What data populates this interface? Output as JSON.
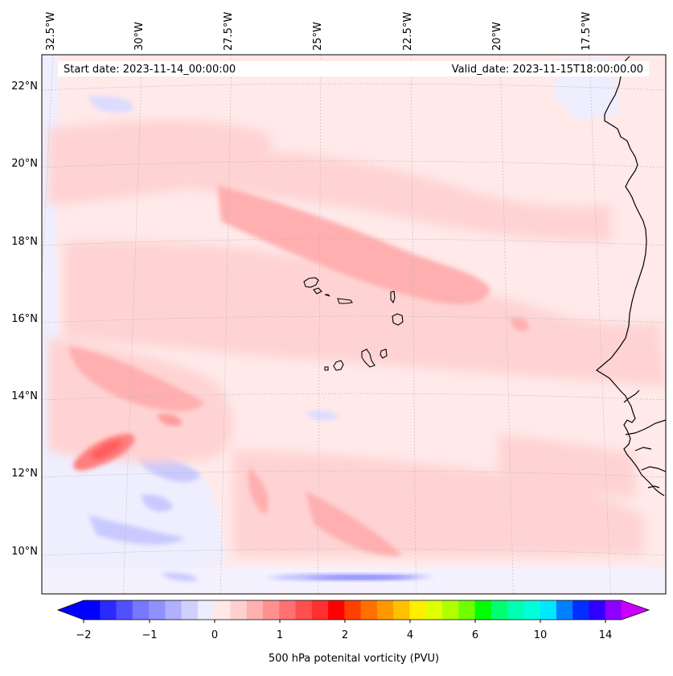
{
  "header": {
    "start_date": "Start date: 2023-11-14_00:00:00",
    "valid_date": "Valid_date: 2023-11-15T18:00:00.00"
  },
  "map": {
    "projection": "lambert-conformal",
    "longitude_labels": [
      "32.5°W",
      "30°W",
      "27.5°W",
      "25°W",
      "22.5°W",
      "20°W",
      "17.5°W"
    ],
    "latitude_labels": [
      "22°N",
      "20°N",
      "18°N",
      "16°N",
      "14°N",
      "12°N",
      "10°N"
    ],
    "gridlines": true,
    "coastlines": true,
    "features": [
      "Cape Verde islands",
      "West African coast"
    ]
  },
  "colorbar": {
    "title": "500 hPa potenital vorticity (PVU)",
    "tick_labels": [
      "−2",
      "−1",
      "0",
      "1",
      "2",
      "4",
      "6",
      "10",
      "14"
    ],
    "extend": "both",
    "colors": [
      "#0000ff",
      "#2a2aff",
      "#5050ff",
      "#7777ff",
      "#9090ff",
      "#b0b0ff",
      "#d0d0ff",
      "#ececff",
      "#ffe8e8",
      "#ffd0d0",
      "#ffb0b0",
      "#ff9090",
      "#ff7070",
      "#ff5050",
      "#ff3030",
      "#ff0000",
      "#ff4000",
      "#ff7000",
      "#ff9800",
      "#ffc000",
      "#ffee00",
      "#e0ff00",
      "#b0ff00",
      "#70ff00",
      "#00ff00",
      "#00ff70",
      "#00ffb0",
      "#00ffd8",
      "#00e8ff",
      "#0080ff",
      "#0030ff",
      "#3000ff",
      "#9000ff"
    ],
    "under_color": "#0000ff",
    "over_color": "#cc00ff"
  }
}
